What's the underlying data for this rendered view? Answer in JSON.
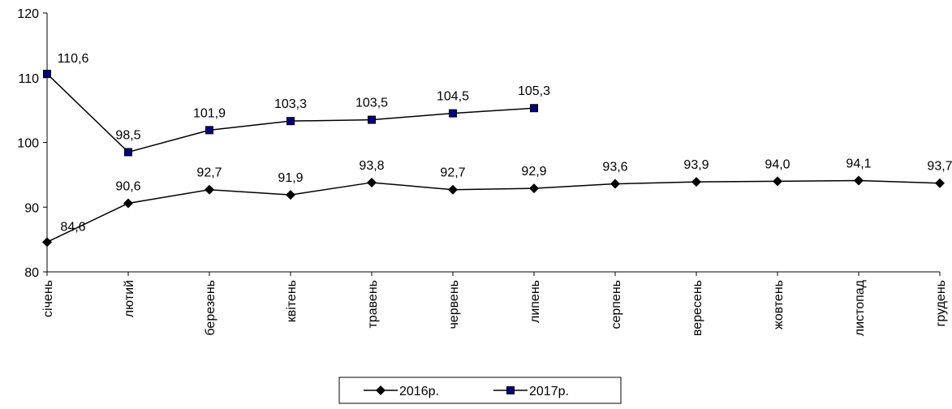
{
  "chart_data": {
    "type": "line",
    "categories": [
      "січень",
      "лютий",
      "березень",
      "квітень",
      "травень",
      "червень",
      "липень",
      "серпень",
      "вересень",
      "жовтень",
      "листопад",
      "грудень"
    ],
    "series": [
      {
        "name": "2016р.",
        "color": "#000000",
        "marker": "diamond",
        "values": [
          84.6,
          90.6,
          92.7,
          91.9,
          93.8,
          92.7,
          92.9,
          93.6,
          93.9,
          94.0,
          94.1,
          93.7
        ],
        "value_labels": [
          "84,6",
          "90,6",
          "92,7",
          "91,9",
          "93,8",
          "92,7",
          "92,9",
          "93,6",
          "93,9",
          "94,0",
          "94,1",
          "93,7"
        ]
      },
      {
        "name": "2017р.",
        "color": "#000080",
        "marker": "square",
        "values": [
          110.6,
          98.5,
          101.9,
          103.3,
          103.5,
          104.5,
          105.3,
          null,
          null,
          null,
          null,
          null
        ],
        "value_labels": [
          "110,6",
          "98,5",
          "101,9",
          "103,3",
          "103,5",
          "104,5",
          "105,3",
          null,
          null,
          null,
          null,
          null
        ]
      }
    ],
    "ylim": [
      80,
      120
    ],
    "yticks": [
      80,
      90,
      100,
      110,
      120
    ],
    "legend": "bottom"
  }
}
